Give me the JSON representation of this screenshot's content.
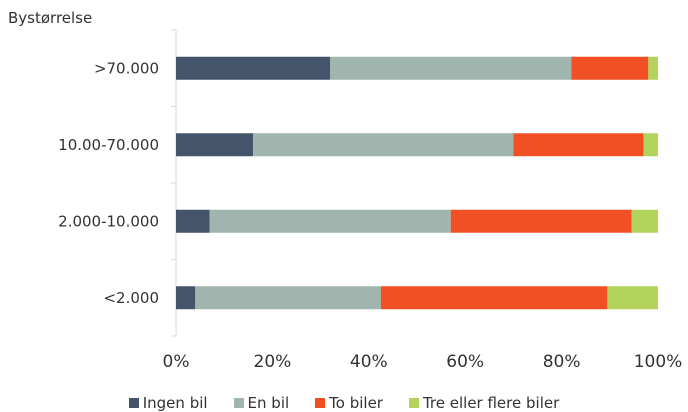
{
  "chart_data": {
    "type": "bar",
    "orientation": "horizontal",
    "stacked": "percent",
    "ylabel": "Bystørrelse",
    "categories": [
      "<2.000",
      "2.000-10.000",
      "10.00-70.000",
      ">70.000"
    ],
    "series": [
      {
        "name": "Ingen bil",
        "color": "#44546a",
        "values": [
          4,
          7,
          16,
          32
        ]
      },
      {
        "name": "En bil",
        "color": "#9fb5ad",
        "values": [
          38.5,
          50,
          54,
          50
        ]
      },
      {
        "name": "To biler",
        "color": "#f05024",
        "values": [
          47,
          37.5,
          27,
          16
        ]
      },
      {
        "name": "Tre eller flere biler",
        "color": "#b2d35c",
        "values": [
          10.5,
          5.5,
          3,
          2
        ]
      }
    ],
    "xlim": [
      0,
      100
    ],
    "xticks": [
      "0%",
      "20%",
      "40%",
      "60%",
      "80%",
      "100%"
    ],
    "grid": false,
    "legend_position": "bottom"
  }
}
